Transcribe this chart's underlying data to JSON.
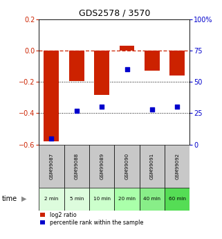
{
  "title": "GDS2578 / 3570",
  "samples": [
    "GSM99087",
    "GSM99088",
    "GSM99089",
    "GSM99090",
    "GSM99091",
    "GSM99092"
  ],
  "time_labels": [
    "2 min",
    "5 min",
    "10 min",
    "20 min",
    "40 min",
    "60 min"
  ],
  "log2_ratio": [
    -0.58,
    -0.195,
    -0.285,
    0.03,
    -0.13,
    -0.16
  ],
  "percentile_rank": [
    5,
    27,
    30,
    60,
    28,
    30
  ],
  "ylim_left": [
    -0.6,
    0.2
  ],
  "ylim_right": [
    0,
    100
  ],
  "yticks_left": [
    -0.6,
    -0.4,
    -0.2,
    0.0,
    0.2
  ],
  "yticks_right": [
    0,
    25,
    50,
    75,
    100
  ],
  "bar_color": "#CC2200",
  "scatter_color": "#0000CC",
  "dashed_line_color": "#CC2200",
  "dotted_line_color": "#000000",
  "title_color": "#000000",
  "left_tick_color": "#CC2200",
  "right_tick_color": "#0000CC",
  "gray_cell_color": "#C8C8C8",
  "green_colors": [
    "#DDFCDD",
    "#DDFCDD",
    "#CCFFCC",
    "#AAFFAA",
    "#88EE88",
    "#55DD55"
  ],
  "bar_width": 0.6,
  "figsize": [
    3.21,
    3.45
  ],
  "dpi": 100
}
